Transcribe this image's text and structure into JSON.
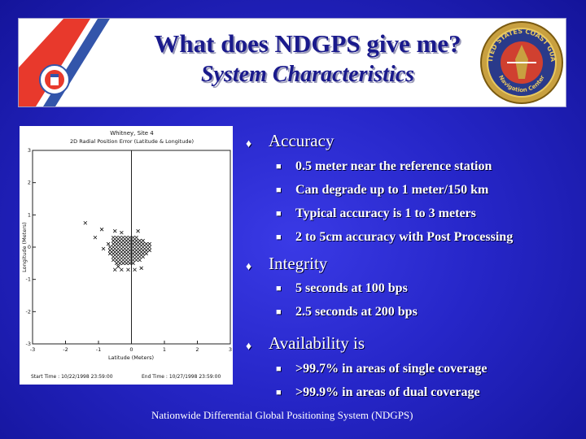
{
  "slide": {
    "title": "What does NDGPS give me?",
    "subtitle": "System Characteristics",
    "footer": "Nationwide Differential Global Positioning System (NDGPS)",
    "colors": {
      "background": "#2626c8",
      "title": "#1a1a8c",
      "stripe_red": "#e8392c",
      "stripe_blue": "#3355aa"
    },
    "icons": [
      "coast-guard-stripe-icon",
      "coast-guard-seal-icon",
      "diamond-bullet-icon",
      "square-bullet-icon"
    ]
  },
  "seal": {
    "ring_text": "UNITED STATES COAST GUARD",
    "bottom_text": "Navigation Center"
  },
  "bullets": [
    {
      "label": "Accuracy",
      "subs": [
        "0.5 meter near the reference station",
        "Can degrade up to 1 meter/150 km",
        "Typical accuracy is 1 to 3 meters",
        "2 to 5cm accuracy with Post Processing"
      ]
    },
    {
      "label": "Integrity",
      "subs": [
        "5 seconds at 100 bps",
        "2.5 seconds at 200 bps"
      ]
    },
    {
      "label": "Availability is",
      "subs": [
        ">99.7% in areas of single coverage",
        ">99.9% in areas of dual coverage"
      ]
    }
  ],
  "chart_data": {
    "type": "scatter",
    "title": "Whitney, Site 4",
    "subtitle": "2D Radial Position Error (Latitude & Longitude)",
    "xlabel": "Latitude (Meters)",
    "ylabel": "Longitude (Meters)",
    "xlim": [
      -3,
      3
    ],
    "ylim": [
      -3,
      3
    ],
    "xticks": [
      "-3",
      "-2",
      "-1",
      "0",
      "1",
      "2",
      "3"
    ],
    "yticks": [
      "3",
      "2",
      "1",
      "0",
      "-1",
      "-2",
      "-3"
    ],
    "grid": false,
    "start_time": "Start Time : 10/22/1998 23:59:00",
    "end_time": "End Time : 10/27/1998 23:59:00",
    "points": [
      [
        -1.4,
        0.75
      ],
      [
        -0.9,
        0.55
      ],
      [
        -1.1,
        0.3
      ],
      [
        0.2,
        0.5
      ],
      [
        0.25,
        0.2
      ],
      [
        -0.7,
        0.1
      ],
      [
        -0.85,
        -0.05
      ],
      [
        -0.5,
        0.5
      ],
      [
        -0.3,
        0.45
      ],
      [
        -0.4,
        -0.6
      ],
      [
        0.3,
        -0.65
      ],
      [
        -0.55,
        0.3
      ],
      [
        -0.45,
        0.3
      ],
      [
        -0.35,
        0.3
      ],
      [
        -0.25,
        0.3
      ],
      [
        -0.15,
        0.3
      ],
      [
        -0.05,
        0.3
      ],
      [
        0.05,
        0.3
      ],
      [
        0.15,
        0.3
      ],
      [
        -0.55,
        0.2
      ],
      [
        -0.45,
        0.2
      ],
      [
        -0.35,
        0.2
      ],
      [
        -0.25,
        0.2
      ],
      [
        -0.15,
        0.2
      ],
      [
        -0.05,
        0.2
      ],
      [
        0.05,
        0.2
      ],
      [
        0.15,
        0.2
      ],
      [
        0.35,
        0.2
      ],
      [
        -0.55,
        0.1
      ],
      [
        -0.45,
        0.1
      ],
      [
        -0.35,
        0.1
      ],
      [
        -0.25,
        0.1
      ],
      [
        -0.15,
        0.1
      ],
      [
        -0.05,
        0.1
      ],
      [
        0.05,
        0.1
      ],
      [
        0.15,
        0.1
      ],
      [
        0.25,
        0.1
      ],
      [
        0.35,
        0.1
      ],
      [
        0.45,
        0.1
      ],
      [
        0.55,
        0.1
      ],
      [
        -0.65,
        0.0
      ],
      [
        -0.55,
        0.0
      ],
      [
        -0.45,
        0.0
      ],
      [
        -0.35,
        0.0
      ],
      [
        -0.25,
        0.0
      ],
      [
        -0.15,
        0.0
      ],
      [
        -0.05,
        0.0
      ],
      [
        0.05,
        0.0
      ],
      [
        0.15,
        0.0
      ],
      [
        0.25,
        0.0
      ],
      [
        0.35,
        0.0
      ],
      [
        0.45,
        0.0
      ],
      [
        0.55,
        0.0
      ],
      [
        -0.65,
        -0.1
      ],
      [
        -0.55,
        -0.1
      ],
      [
        -0.45,
        -0.1
      ],
      [
        -0.35,
        -0.1
      ],
      [
        -0.25,
        -0.1
      ],
      [
        -0.15,
        -0.1
      ],
      [
        -0.05,
        -0.1
      ],
      [
        0.05,
        -0.1
      ],
      [
        0.15,
        -0.1
      ],
      [
        0.25,
        -0.1
      ],
      [
        0.35,
        -0.1
      ],
      [
        0.45,
        -0.1
      ],
      [
        0.55,
        -0.1
      ],
      [
        -0.65,
        -0.2
      ],
      [
        -0.55,
        -0.2
      ],
      [
        -0.45,
        -0.2
      ],
      [
        -0.35,
        -0.2
      ],
      [
        -0.25,
        -0.2
      ],
      [
        -0.15,
        -0.2
      ],
      [
        -0.05,
        -0.2
      ],
      [
        0.05,
        -0.2
      ],
      [
        0.15,
        -0.2
      ],
      [
        0.25,
        -0.2
      ],
      [
        0.35,
        -0.2
      ],
      [
        0.45,
        -0.2
      ],
      [
        -0.55,
        -0.3
      ],
      [
        -0.45,
        -0.3
      ],
      [
        -0.35,
        -0.3
      ],
      [
        -0.25,
        -0.3
      ],
      [
        -0.15,
        -0.3
      ],
      [
        -0.05,
        -0.3
      ],
      [
        0.05,
        -0.3
      ],
      [
        0.15,
        -0.3
      ],
      [
        0.25,
        -0.3
      ],
      [
        0.35,
        -0.3
      ],
      [
        -0.55,
        -0.4
      ],
      [
        -0.45,
        -0.4
      ],
      [
        -0.35,
        -0.4
      ],
      [
        -0.25,
        -0.4
      ],
      [
        -0.15,
        -0.4
      ],
      [
        -0.05,
        -0.4
      ],
      [
        0.05,
        -0.4
      ],
      [
        0.15,
        -0.4
      ],
      [
        0.25,
        -0.4
      ],
      [
        -0.45,
        -0.5
      ],
      [
        -0.35,
        -0.5
      ],
      [
        -0.25,
        -0.5
      ],
      [
        -0.15,
        -0.5
      ],
      [
        -0.05,
        -0.5
      ],
      [
        0.05,
        -0.5
      ],
      [
        -0.5,
        -0.7
      ],
      [
        -0.3,
        -0.7
      ],
      [
        -0.1,
        -0.7
      ],
      [
        0.1,
        -0.7
      ]
    ]
  }
}
